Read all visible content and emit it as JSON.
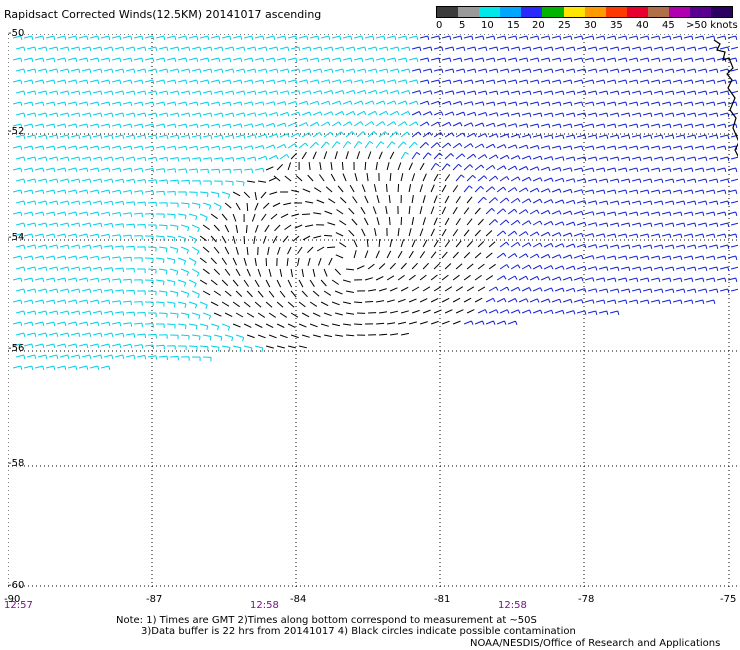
{
  "title": "Rapidsact Corrected Winds(12.5KM) 20141017 ascending",
  "legend": {
    "labels": [
      "0",
      "5",
      "10",
      "15",
      "20",
      "25",
      "30",
      "35",
      "40",
      "45",
      ">50 knots"
    ],
    "colors": [
      "#3c3c3c",
      "#9a9a9a",
      "#00e8e8",
      "#00a6ff",
      "#2a2aff",
      "#00b400",
      "#ffe600",
      "#ff9a00",
      "#ff3a00",
      "#e8002e",
      "#b06f46",
      "#b000b0",
      "#5a0090",
      "#2a0060"
    ]
  },
  "axes": {
    "lat_labels": [
      "-50",
      "-52",
      "-54",
      "-56",
      "-58",
      "-60"
    ],
    "lon_labels": [
      "-90",
      "-87",
      "-84",
      "-81",
      "-78",
      "-75"
    ]
  },
  "times": [
    "12:57",
    "12:58",
    "12:58"
  ],
  "notes": {
    "line1": "Note: 1) Times are GMT 2)Times along bottom correspond to measurement at ~50S",
    "line2": "3)Data buffer is 22 hrs from 20141017 4) Black circles indicate possible contamination"
  },
  "credit": "NOAA/NESDIS/Office of Research and Applications",
  "colors": {
    "calm": "#000000",
    "light": "#00d0e8",
    "moderate": "#1020d8",
    "strong": "#20d020",
    "grid": "#000000"
  }
}
